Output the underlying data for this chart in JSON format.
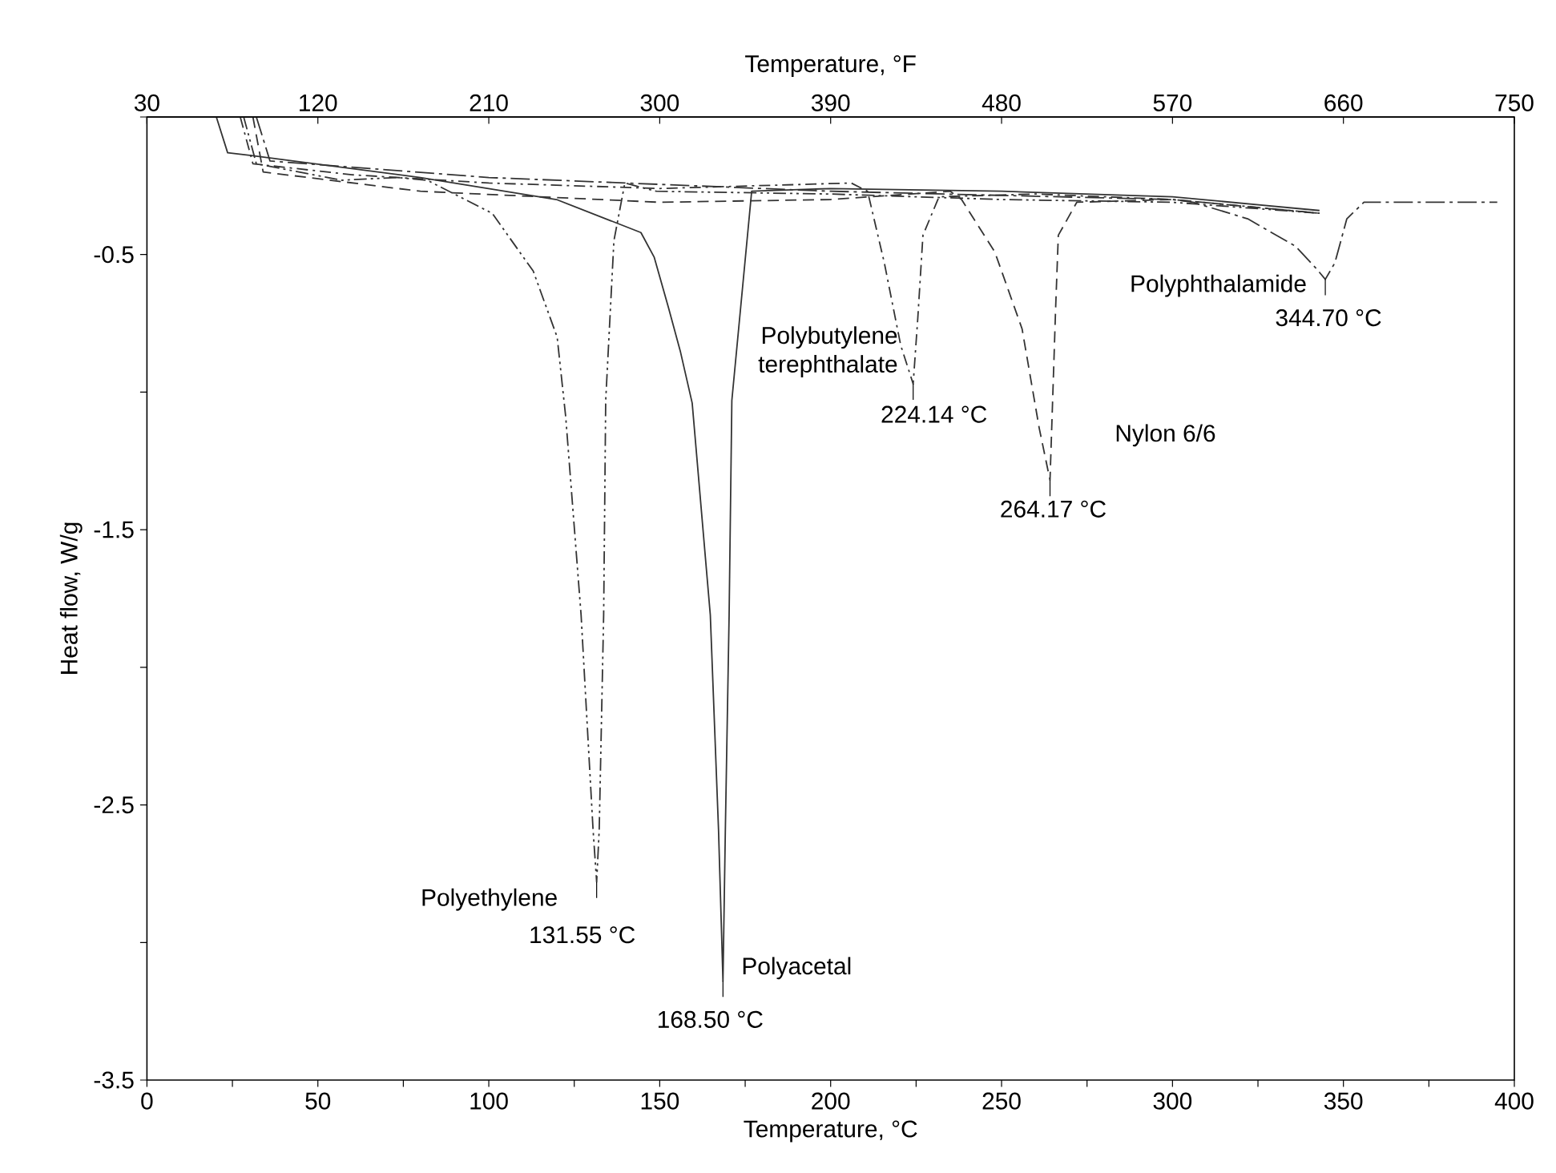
{
  "chart_data": {
    "type": "line",
    "xlabel": "Temperature, °C",
    "ylabel": "Heat flow, W/g",
    "x2label": "Temperature, °F",
    "xlim": [
      0,
      400
    ],
    "ylim": [
      -3.5,
      0
    ],
    "x2lim": [
      30,
      750
    ],
    "xticks": [
      0,
      {
        "value": 25,
        "label": null
      },
      50,
      {
        "value": 75,
        "label": null
      },
      100,
      {
        "value": 125,
        "label": null
      },
      150,
      {
        "value": 175,
        "label": null
      },
      200,
      {
        "value": 225,
        "label": null
      },
      250,
      {
        "value": 275,
        "label": null
      },
      300,
      {
        "value": 325,
        "label": null
      },
      350,
      {
        "value": 375,
        "label": null
      },
      400
    ],
    "yticks": [
      {
        "value": 0,
        "label": null
      },
      -0.5,
      {
        "value": -1,
        "label": null
      },
      -1.5,
      {
        "value": -2,
        "label": null
      },
      -2.5,
      {
        "value": -3,
        "label": null
      },
      -3.5
    ],
    "x2ticks": [
      30,
      120,
      210,
      300,
      390,
      480,
      570,
      660,
      750
    ],
    "series": [
      {
        "name": "Polyethylene",
        "color": "#333333",
        "line_style": "dashdotdot",
        "x": [
          28.3,
          32,
          57,
          73,
          82,
          101,
          113,
          120,
          122.5,
          127,
          130.5,
          131.55,
          132.3,
          133.6,
          134.2,
          136.6,
          139.8,
          149,
          200,
          250,
          300,
          343
        ],
        "values": [
          0,
          -0.17,
          -0.23,
          -0.22,
          -0.23,
          -0.35,
          -0.56,
          -0.8,
          -1.09,
          -1.81,
          -2.59,
          -2.78,
          -2.59,
          -1.81,
          -1.03,
          -0.45,
          -0.24,
          -0.27,
          -0.28,
          -0.3,
          -0.31,
          -0.35
        ]
      },
      {
        "name": "Polyacetal",
        "color": "#333333",
        "line_style": "solid",
        "x": [
          20.3,
          23.6,
          30.6,
          80,
          119.8,
          144.5,
          148.4,
          152.5,
          156,
          159.5,
          164.8,
          167.2,
          168.5,
          169.2,
          170.3,
          171.1,
          176.9,
          200,
          250,
          300,
          343
        ],
        "values": [
          0,
          -0.13,
          -0.14,
          -0.22,
          -0.3,
          -0.42,
          -0.51,
          -0.69,
          -0.85,
          -1.04,
          -1.81,
          -2.59,
          -3.14,
          -2.59,
          -1.81,
          -1.03,
          -0.27,
          -0.26,
          -0.27,
          -0.29,
          -0.34
        ]
      },
      {
        "name": "Polybutylene terephthalate",
        "color": "#333333",
        "line_style": "dashdot",
        "x": [
          27.3,
          31,
          60,
          100,
          150,
          206,
          210.8,
          215.7,
          220.5,
          224.14,
          225.5,
          227,
          231.7,
          260,
          300,
          343
        ],
        "values": [
          0,
          -0.17,
          -0.21,
          -0.24,
          -0.26,
          -0.24,
          -0.27,
          -0.53,
          -0.83,
          -0.97,
          -0.73,
          -0.43,
          -0.29,
          -0.28,
          -0.3,
          -0.35
        ]
      },
      {
        "name": "Nylon 6/6",
        "color": "#333333",
        "line_style": "dashed",
        "x": [
          31,
          34,
          80,
          150,
          200,
          235,
          238.3,
          248,
          256,
          261,
          264.17,
          265.2,
          265.8,
          266.6,
          272,
          300,
          343
        ],
        "values": [
          0,
          -0.2,
          -0.27,
          -0.31,
          -0.3,
          -0.27,
          -0.3,
          -0.49,
          -0.77,
          -1.13,
          -1.32,
          -0.93,
          -0.7,
          -0.43,
          -0.31,
          -0.3,
          -0.35
        ]
      },
      {
        "name": "Polyphthalamide",
        "color": "#333333",
        "line_style": "longdashdot",
        "x": [
          32,
          36,
          100,
          200,
          300,
          306,
          322,
          336,
          342,
          344.7,
          347.5,
          351,
          356,
          395
        ],
        "values": [
          0,
          -0.16,
          -0.22,
          -0.27,
          -0.3,
          -0.31,
          -0.37,
          -0.47,
          -0.55,
          -0.59,
          -0.53,
          -0.37,
          -0.31,
          -0.31
        ]
      }
    ],
    "annotations": [
      {
        "text": "131.55 °C",
        "x": 131.55,
        "y": -2.78
      },
      {
        "text": "168.50 °C",
        "x": 168.5,
        "y": -3.14
      },
      {
        "text": "224.14 °C",
        "x": 224.14,
        "y": -0.97
      },
      {
        "text": "264.17 °C",
        "x": 264.17,
        "y": -1.32
      },
      {
        "text": "344.70 °C",
        "x": 344.7,
        "y": -0.59
      }
    ]
  }
}
